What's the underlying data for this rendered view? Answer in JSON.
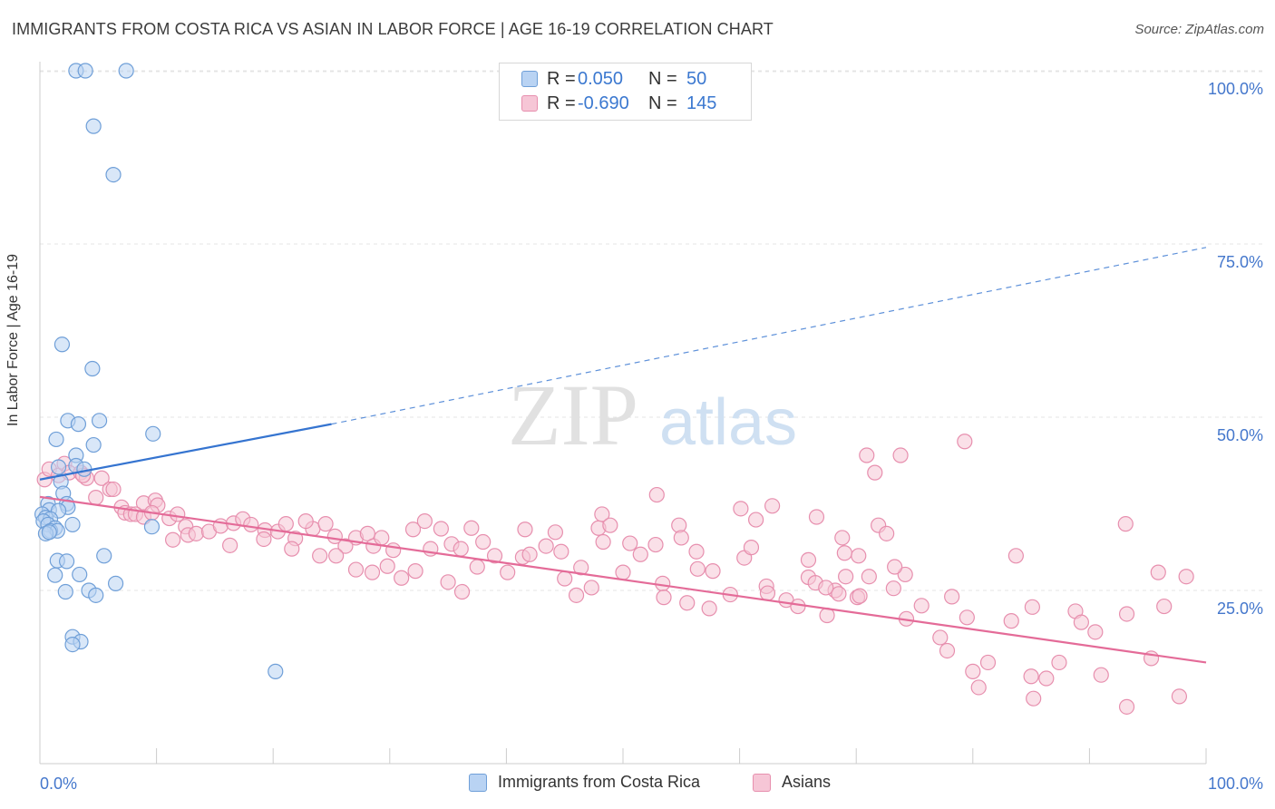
{
  "title": "IMMIGRANTS FROM COSTA RICA VS ASIAN IN LABOR FORCE | AGE 16-19 CORRELATION CHART",
  "source": "Source: ZipAtlas.com",
  "watermark": {
    "zip": "ZIP",
    "atlas": "atlas"
  },
  "legend": {
    "r_label": "R =",
    "n_label": "N =",
    "series1": {
      "r": "0.050",
      "n": "50"
    },
    "series2": {
      "r": "-0.690",
      "n": "145"
    }
  },
  "bottom_legend": {
    "series1": "Immigrants from Costa Rica",
    "series2": "Asians"
  },
  "colors": {
    "blue_fill": "#b9d3f3",
    "blue_stroke": "#6f9fd8",
    "blue_line": "#3574d0",
    "pink_fill": "#f6c6d6",
    "pink_stroke": "#e78fae",
    "pink_line": "#e46b98",
    "tick_text": "#4477cc",
    "grid": "#e4e4e4"
  },
  "chart_data": {
    "type": "scatter",
    "title": "IMMIGRANTS FROM COSTA RICA VS ASIAN IN LABOR FORCE | AGE 16-19 CORRELATION CHART",
    "xlabel": "",
    "ylabel": "In Labor Force | Age 16-19",
    "xlim": [
      0,
      100
    ],
    "ylim": [
      0,
      102
    ],
    "x_ticks": [
      "0.0%",
      "100.0%"
    ],
    "y_ticks": [
      {
        "value": 25,
        "label": "25.0%"
      },
      {
        "value": 50,
        "label": "50.0%"
      },
      {
        "value": 75,
        "label": "75.0%"
      },
      {
        "value": 100,
        "label": "100.0%"
      }
    ],
    "grid": true,
    "legend_position": "top-center",
    "series": [
      {
        "name": "Immigrants from Costa Rica",
        "color": "#6f9fd8",
        "trend": {
          "x0": 0,
          "y0": 41,
          "x1": 25,
          "y1": 49,
          "dashed_to_x": 100,
          "dashed_to_y": 74.5
        },
        "points": [
          [
            3.1,
            100
          ],
          [
            3.9,
            100
          ],
          [
            7.4,
            100
          ],
          [
            4.6,
            92
          ],
          [
            6.3,
            85
          ],
          [
            1.9,
            60.5
          ],
          [
            4.5,
            57
          ],
          [
            2.4,
            49.5
          ],
          [
            3.3,
            49
          ],
          [
            5.1,
            49.5
          ],
          [
            9.7,
            47.6
          ],
          [
            1.4,
            46.8
          ],
          [
            4.6,
            46
          ],
          [
            3.1,
            44.5
          ],
          [
            1.6,
            42.8
          ],
          [
            3.1,
            43
          ],
          [
            3.8,
            42.5
          ],
          [
            1.8,
            40.7
          ],
          [
            2.0,
            39
          ],
          [
            0.7,
            37.5
          ],
          [
            2.3,
            37.5
          ],
          [
            2.4,
            37
          ],
          [
            0.8,
            36.6
          ],
          [
            1.6,
            36.5
          ],
          [
            0.2,
            36
          ],
          [
            0.5,
            35.5
          ],
          [
            0.9,
            35.3
          ],
          [
            0.3,
            35
          ],
          [
            0.7,
            34.5
          ],
          [
            2.8,
            34.5
          ],
          [
            9.6,
            34.2
          ],
          [
            1.3,
            34
          ],
          [
            0.9,
            33.6
          ],
          [
            1.5,
            33.6
          ],
          [
            0.5,
            33.2
          ],
          [
            0.8,
            33.4
          ],
          [
            5.5,
            30
          ],
          [
            1.5,
            29.3
          ],
          [
            2.3,
            29.2
          ],
          [
            1.3,
            27.2
          ],
          [
            3.4,
            27.3
          ],
          [
            6.5,
            26
          ],
          [
            2.2,
            24.8
          ],
          [
            4.2,
            25
          ],
          [
            4.8,
            24.3
          ],
          [
            2.8,
            18.3
          ],
          [
            3.5,
            17.6
          ],
          [
            2.8,
            17.2
          ],
          [
            20.2,
            13.3
          ]
        ]
      },
      {
        "name": "Asians",
        "color": "#e78fae",
        "trend": {
          "x0": 0,
          "y0": 38.5,
          "x1": 100,
          "y1": 14.6
        },
        "points": [
          [
            0.4,
            41
          ],
          [
            0.8,
            42.5
          ],
          [
            1.6,
            41.6
          ],
          [
            2.1,
            43.3
          ],
          [
            2.5,
            42
          ],
          [
            3.5,
            42
          ],
          [
            4.0,
            41.2
          ],
          [
            3.7,
            41.6
          ],
          [
            5.3,
            41.2
          ],
          [
            6.0,
            39.6
          ],
          [
            6.3,
            39.6
          ],
          [
            4.8,
            38.4
          ],
          [
            7.0,
            37
          ],
          [
            8.9,
            37.6
          ],
          [
            9.9,
            38
          ],
          [
            10.1,
            37.3
          ],
          [
            7.3,
            36.2
          ],
          [
            7.8,
            36
          ],
          [
            8.2,
            36
          ],
          [
            8.9,
            35.6
          ],
          [
            9.6,
            36.2
          ],
          [
            11.1,
            35.4
          ],
          [
            11.8,
            36
          ],
          [
            12.5,
            34.2
          ],
          [
            11.4,
            32.3
          ],
          [
            12.7,
            33
          ],
          [
            13.4,
            33.2
          ],
          [
            14.5,
            33.5
          ],
          [
            15.5,
            34.3
          ],
          [
            16.6,
            34.7
          ],
          [
            17.4,
            35.3
          ],
          [
            18.1,
            34.5
          ],
          [
            19.3,
            33.7
          ],
          [
            16.3,
            31.5
          ],
          [
            19.2,
            32.4
          ],
          [
            20.4,
            33.5
          ],
          [
            21.1,
            34.6
          ],
          [
            21.9,
            32.5
          ],
          [
            23.4,
            33.9
          ],
          [
            21.6,
            31
          ],
          [
            24.0,
            30
          ],
          [
            22.8,
            35
          ],
          [
            24.5,
            34.6
          ],
          [
            25.3,
            32.8
          ],
          [
            27.1,
            32.6
          ],
          [
            28.1,
            33.2
          ],
          [
            28.6,
            31.4
          ],
          [
            26.2,
            31.4
          ],
          [
            29.3,
            32.6
          ],
          [
            30.3,
            30.8
          ],
          [
            25.4,
            30
          ],
          [
            27.1,
            28
          ],
          [
            28.5,
            27.6
          ],
          [
            29.8,
            28.5
          ],
          [
            32.0,
            33.8
          ],
          [
            32.2,
            27.8
          ],
          [
            31.0,
            26.8
          ],
          [
            33.0,
            35
          ],
          [
            33.5,
            31
          ],
          [
            34.4,
            33.9
          ],
          [
            35.3,
            31.7
          ],
          [
            36.1,
            31
          ],
          [
            37.0,
            34
          ],
          [
            38.0,
            32
          ],
          [
            35.0,
            26.2
          ],
          [
            36.2,
            24.8
          ],
          [
            37.5,
            28.4
          ],
          [
            39.0,
            30
          ],
          [
            40.1,
            27.6
          ],
          [
            41.4,
            29.8
          ],
          [
            42.0,
            30.2
          ],
          [
            43.4,
            31.4
          ],
          [
            44.2,
            33.4
          ],
          [
            44.7,
            30.6
          ],
          [
            45.0,
            26.7
          ],
          [
            46.4,
            28.3
          ],
          [
            47.3,
            25.4
          ],
          [
            47.9,
            34
          ],
          [
            48.3,
            32
          ],
          [
            46.0,
            24.3
          ],
          [
            50.0,
            27.6
          ],
          [
            48.2,
            36
          ],
          [
            48.9,
            34.4
          ],
          [
            50.6,
            31.8
          ],
          [
            51.5,
            30.2
          ],
          [
            52.8,
            31.6
          ],
          [
            53.4,
            26
          ],
          [
            54.8,
            34.4
          ],
          [
            55.0,
            32.6
          ],
          [
            53.5,
            24
          ],
          [
            55.5,
            23.2
          ],
          [
            56.4,
            28.1
          ],
          [
            56.3,
            30.6
          ],
          [
            57.4,
            22.4
          ],
          [
            57.7,
            27.8
          ],
          [
            59.2,
            24.4
          ],
          [
            60.4,
            29.7
          ],
          [
            61.0,
            31.2
          ],
          [
            62.3,
            25.6
          ],
          [
            62.4,
            24.6
          ],
          [
            61.4,
            35.2
          ],
          [
            62.8,
            37.2
          ],
          [
            64.0,
            23.6
          ],
          [
            65.0,
            22.7
          ],
          [
            65.9,
            26.9
          ],
          [
            65.9,
            29.4
          ],
          [
            66.6,
            35.6
          ],
          [
            67.5,
            21.4
          ],
          [
            68.2,
            25
          ],
          [
            69.1,
            27
          ],
          [
            68.5,
            24.5
          ],
          [
            68.8,
            32.6
          ],
          [
            70.2,
            30
          ],
          [
            70.1,
            24
          ],
          [
            71.1,
            27
          ],
          [
            71.6,
            42
          ],
          [
            73.2,
            25.3
          ],
          [
            74.2,
            27.3
          ],
          [
            74.3,
            20.9
          ],
          [
            75.6,
            22.8
          ],
          [
            77.2,
            18.2
          ],
          [
            78.2,
            24.1
          ],
          [
            77.8,
            16.3
          ],
          [
            79.5,
            21.1
          ],
          [
            80.0,
            13.3
          ],
          [
            81.3,
            14.6
          ],
          [
            83.3,
            20.6
          ],
          [
            83.7,
            30
          ],
          [
            85.1,
            22.6
          ],
          [
            85.2,
            9.4
          ],
          [
            86.3,
            12.3
          ],
          [
            87.4,
            14.6
          ],
          [
            88.8,
            22
          ],
          [
            89.3,
            20.4
          ],
          [
            90.5,
            19
          ],
          [
            91.0,
            12.8
          ],
          [
            93.2,
            21.6
          ],
          [
            93.1,
            34.6
          ],
          [
            93.2,
            8.2
          ],
          [
            95.3,
            15.2
          ],
          [
            95.9,
            27.6
          ],
          [
            96.4,
            22.7
          ],
          [
            97.7,
            9.7
          ],
          [
            98.3,
            27
          ],
          [
            41.6,
            33.8
          ],
          [
            71.9,
            34.4
          ],
          [
            72.6,
            33.2
          ],
          [
            52.9,
            38.8
          ],
          [
            60.1,
            36.8
          ],
          [
            70.9,
            44.5
          ],
          [
            73.8,
            44.5
          ],
          [
            79.3,
            46.5
          ],
          [
            73.3,
            28.4
          ],
          [
            66.5,
            26.1
          ],
          [
            67.4,
            25.4
          ],
          [
            69.0,
            30.4
          ],
          [
            80.5,
            11
          ],
          [
            70.3,
            24.2
          ],
          [
            85.0,
            12.6
          ]
        ]
      }
    ]
  }
}
